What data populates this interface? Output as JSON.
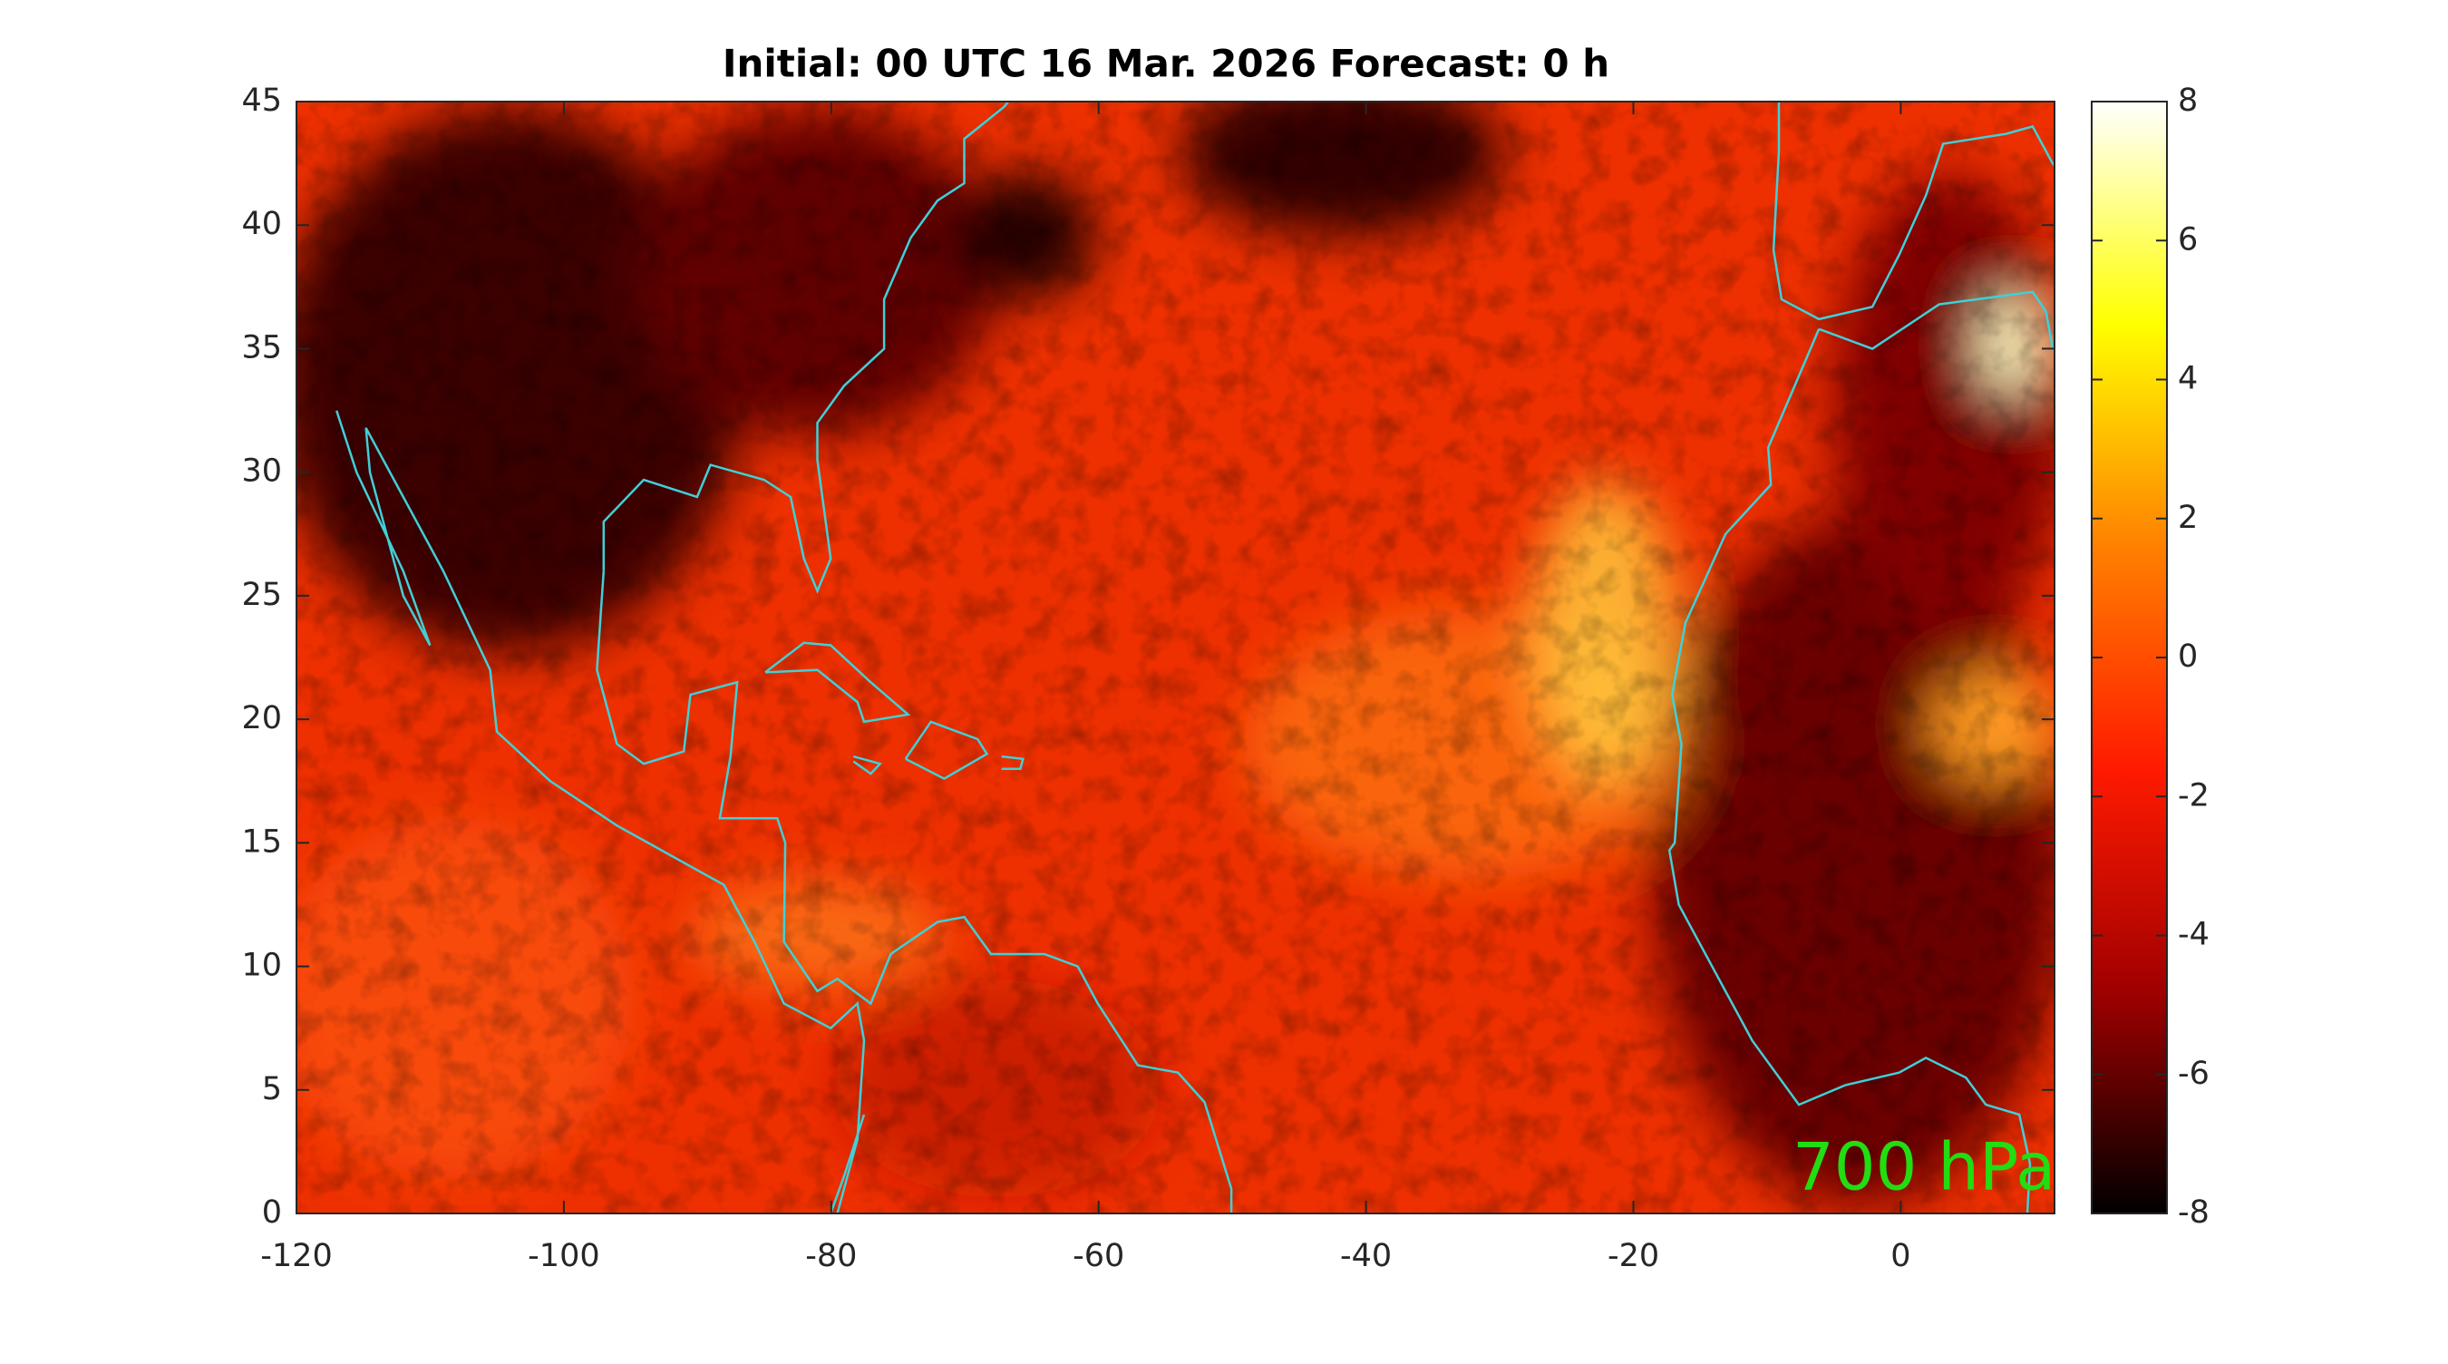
{
  "chart_data": {
    "type": "heatmap",
    "title": "Initial: 00 UTC 16 Mar. 2026 Forecast: 0 h",
    "annotation": "700 hPa",
    "annotation_color": "#22dd11",
    "xlim": [
      -120,
      11.5
    ],
    "xticks": [
      -120,
      -100,
      -80,
      -60,
      -40,
      -20,
      0
    ],
    "ylim": [
      0,
      45
    ],
    "yticks": [
      0,
      5,
      10,
      15,
      20,
      25,
      30,
      35,
      40,
      45
    ],
    "colorbar": {
      "lim": [
        -8,
        8
      ],
      "ticks": [
        -8,
        -6,
        -4,
        -2,
        0,
        2,
        4,
        6,
        8
      ],
      "colormap": [
        "#000000",
        "#a00000",
        "#ff1a00",
        "#ff8000",
        "#ffff00",
        "#ffffff"
      ]
    },
    "coastline_color": "#40d0d8"
  }
}
